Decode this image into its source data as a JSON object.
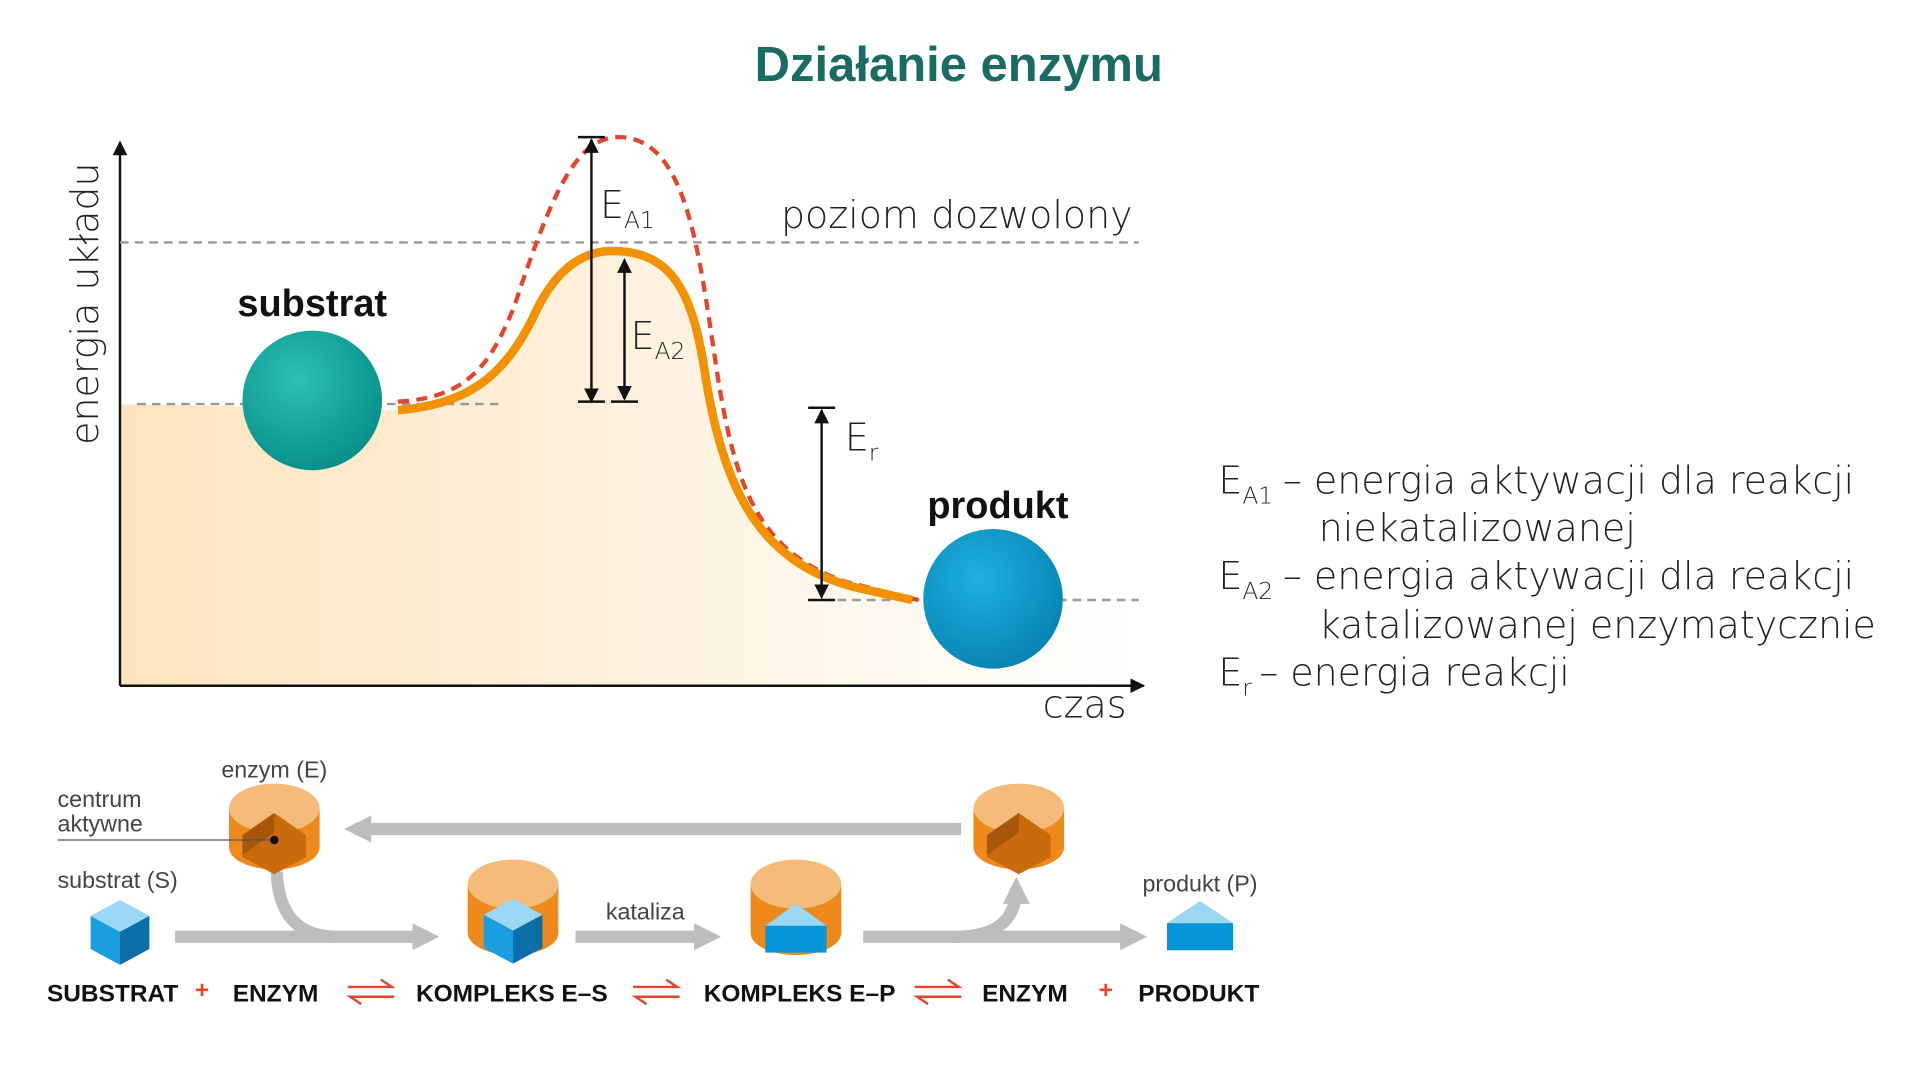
{
  "title": "Działanie enzymu",
  "energy_diagram": {
    "y_axis_label": "energia układu",
    "x_axis_label": "czas",
    "allowed_level_label": "poziom dozwolony",
    "substrate_label": "substrat",
    "product_label": "produkt",
    "markers": [
      {
        "symbol": "E",
        "subscript": "A1"
      },
      {
        "symbol": "E",
        "subscript": "A2"
      },
      {
        "symbol": "E",
        "subscript": "r"
      }
    ]
  },
  "legend": [
    {
      "symbol": "E",
      "subscript": "A1",
      "text": "– energia aktywacji dla reakcji",
      "continuation": "niekatalizowanej"
    },
    {
      "symbol": "E",
      "subscript": "A2",
      "text": "– energia aktywacji dla reakcji",
      "continuation": "katalizowanej enzymatycznie"
    },
    {
      "symbol": "E",
      "subscript": "r",
      "text": "– energia reakcji"
    }
  ],
  "mechanism": {
    "enzyme_label": "enzym (E)",
    "active_site_label": [
      "centrum",
      "aktywne"
    ],
    "substrate_label": "substrat (S)",
    "catalysis_label": "kataliza",
    "product_label": "produkt (P)",
    "equation": {
      "terms": [
        "SUBSTRAT",
        "ENZYM",
        "KOMPLEKS E–S",
        "KOMPLEKS E–P",
        "ENZYM",
        "PRODUKT"
      ],
      "plus": "+"
    }
  }
}
